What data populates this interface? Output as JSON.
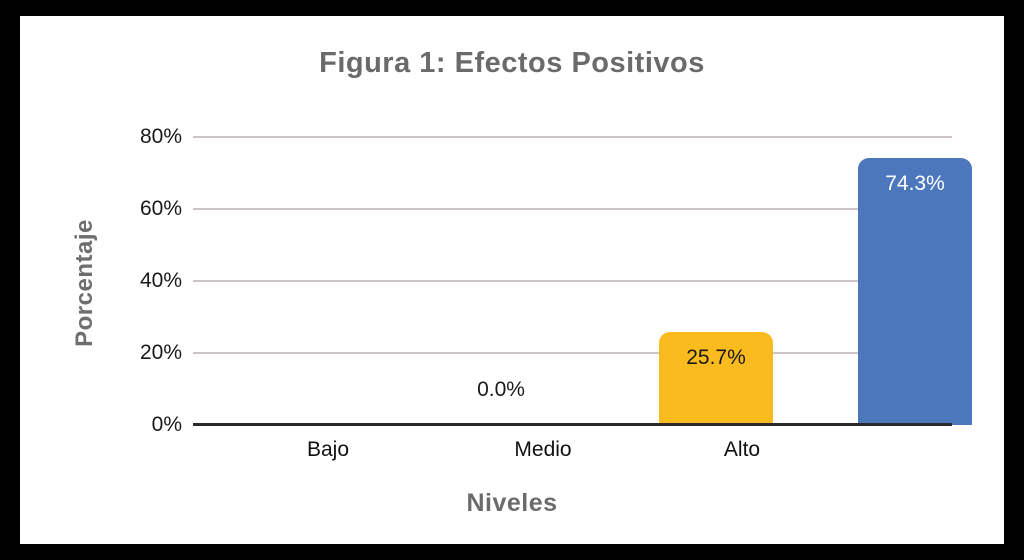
{
  "chart_data": {
    "type": "bar",
    "title": "Figura 1: Efectos Positivos",
    "xlabel": "Niveles",
    "ylabel": "Porcentaje",
    "categories": [
      "Bajo",
      "Medio",
      "Alto"
    ],
    "values": [
      0.0,
      25.7,
      74.3
    ],
    "value_labels": [
      "0.0%",
      "25.7%",
      "74.3%"
    ],
    "bar_colors": [
      "none",
      "#F9BB1E",
      "#4C77BD"
    ],
    "value_label_colors": [
      "#1a1a1a",
      "#1a1a1a",
      "#ffffff"
    ],
    "yticks": [
      "0%",
      "20%",
      "40%",
      "60%",
      "80%"
    ],
    "ylim": [
      0,
      80
    ],
    "grid": true,
    "legend": "none",
    "card_color": "#ffffff",
    "frame_color": "#000000",
    "grid_color": "#cac4c6",
    "axis_line_color": "#2d292a",
    "title_color": "#6a6a6a"
  }
}
